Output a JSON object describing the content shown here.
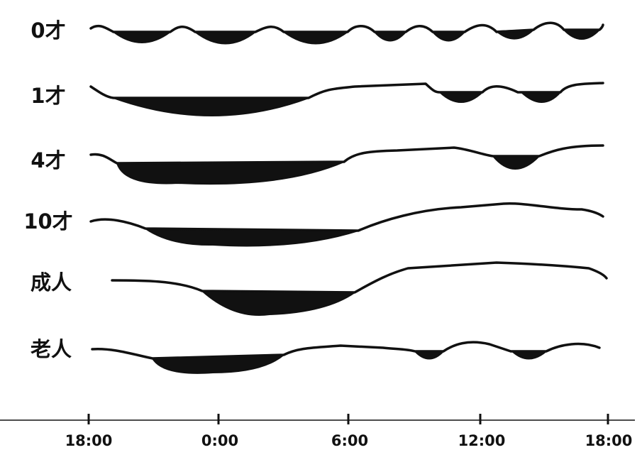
{
  "rows": [
    {
      "label": "0才"
    },
    {
      "label": "1才"
    },
    {
      "label": "4才"
    },
    {
      "label": "10才"
    },
    {
      "label": "成人"
    },
    {
      "label": "老人"
    }
  ],
  "axis": {
    "ticks": [
      "18:00",
      "0:00",
      "6:00",
      "12:00",
      "18:00"
    ]
  }
}
